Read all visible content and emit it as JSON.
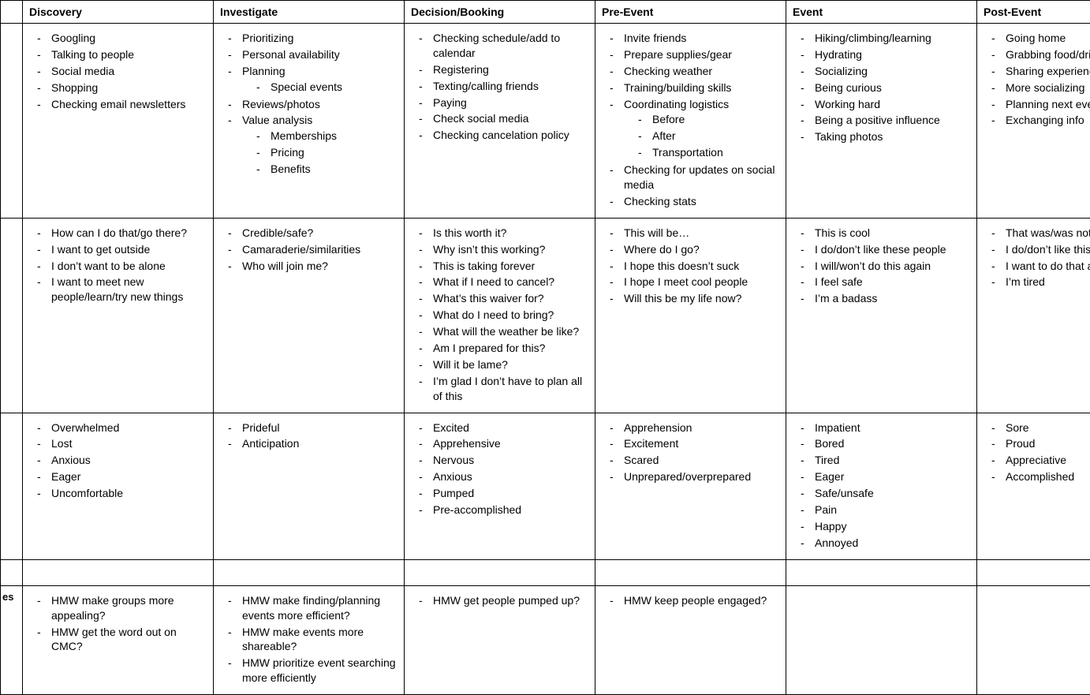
{
  "type": "table",
  "colors": {
    "border": "#000000",
    "background": "#ffffff",
    "text": "#000000"
  },
  "typography": {
    "font_family": "Arial",
    "base_fontsize_pt": 11,
    "header_weight": "bold"
  },
  "columns": [
    "Discovery",
    "Investigate",
    "Decision/Booking",
    "Pre-Event",
    "Event",
    "Post-Event"
  ],
  "row_labels": [
    "",
    "",
    "",
    "",
    "es"
  ],
  "rows": [
    {
      "cells": [
        {
          "items": [
            {
              "t": "Googling"
            },
            {
              "t": "Talking to people"
            },
            {
              "t": "Social media"
            },
            {
              "t": "Shopping"
            },
            {
              "t": "Checking email newsletters"
            }
          ]
        },
        {
          "items": [
            {
              "t": "Prioritizing"
            },
            {
              "t": "Personal availability"
            },
            {
              "t": "Planning",
              "children": [
                {
                  "t": "Special events"
                }
              ]
            },
            {
              "t": "Reviews/photos"
            },
            {
              "t": "Value analysis",
              "children": [
                {
                  "t": "Memberships"
                },
                {
                  "t": "Pricing"
                },
                {
                  "t": "Benefits"
                }
              ]
            }
          ]
        },
        {
          "items": [
            {
              "t": "Checking schedule/add to calendar"
            },
            {
              "t": "Registering"
            },
            {
              "t": "Texting/calling friends"
            },
            {
              "t": "Paying"
            },
            {
              "t": "Check social media"
            },
            {
              "t": "Checking cancelation policy"
            }
          ]
        },
        {
          "items": [
            {
              "t": "Invite friends"
            },
            {
              "t": "Prepare supplies/gear"
            },
            {
              "t": "Checking weather"
            },
            {
              "t": "Training/building skills"
            },
            {
              "t": "Coordinating logistics",
              "children": [
                {
                  "t": "Before"
                },
                {
                  "t": "After"
                },
                {
                  "t": "Transportation"
                }
              ]
            },
            {
              "t": "Checking for updates on social media"
            },
            {
              "t": "Checking stats"
            }
          ]
        },
        {
          "items": [
            {
              "t": "Hiking/climbing/learning"
            },
            {
              "t": "Hydrating"
            },
            {
              "t": "Socializing"
            },
            {
              "t": "Being curious"
            },
            {
              "t": "Working hard"
            },
            {
              "t": "Being a positive influence"
            },
            {
              "t": "Taking photos"
            }
          ]
        },
        {
          "items": [
            {
              "t": "Going home"
            },
            {
              "t": "Grabbing food/drinks"
            },
            {
              "t": "Sharing experience"
            },
            {
              "t": "More socializing"
            },
            {
              "t": "Planning next event"
            },
            {
              "t": "Exchanging info"
            }
          ]
        }
      ]
    },
    {
      "cells": [
        {
          "items": [
            {
              "t": "How can I do that/go there?"
            },
            {
              "t": "I want to get outside"
            },
            {
              "t": "I don’t want to be alone"
            },
            {
              "t": "I want to meet new people/learn/try new things"
            }
          ]
        },
        {
          "items": [
            {
              "t": "Credible/safe?"
            },
            {
              "t": "Camaraderie/similarities"
            },
            {
              "t": "Who will join me?"
            }
          ]
        },
        {
          "items": [
            {
              "t": "Is this worth it?"
            },
            {
              "t": "Why isn’t this working?"
            },
            {
              "t": "This is taking forever"
            },
            {
              "t": "What if I need to cancel?"
            },
            {
              "t": "What’s this waiver for?"
            },
            {
              "t": "What do I need to bring?"
            },
            {
              "t": "What will the weather be like?"
            },
            {
              "t": "Am I prepared for this?"
            },
            {
              "t": "Will it be lame?"
            },
            {
              "t": "I’m glad I don’t have to plan all of this"
            }
          ]
        },
        {
          "items": [
            {
              "t": "This will be…"
            },
            {
              "t": "Where do I go?"
            },
            {
              "t": "I hope this doesn’t suck"
            },
            {
              "t": "I hope I meet cool people"
            },
            {
              "t": "Will this be my life now?"
            }
          ]
        },
        {
          "items": [
            {
              "t": "This is cool"
            },
            {
              "t": "I do/don’t like these people"
            },
            {
              "t": "I will/won’t do this again"
            },
            {
              "t": "I feel safe"
            },
            {
              "t": "I’m a badass"
            }
          ]
        },
        {
          "items": [
            {
              "t": "That was/was not fun"
            },
            {
              "t": "I do/don’t like this"
            },
            {
              "t": "I want to do that again"
            },
            {
              "t": "I’m tired"
            }
          ]
        }
      ]
    },
    {
      "cells": [
        {
          "items": [
            {
              "t": "Overwhelmed"
            },
            {
              "t": "Lost"
            },
            {
              "t": "Anxious"
            },
            {
              "t": "Eager"
            },
            {
              "t": "Uncomfortable"
            }
          ]
        },
        {
          "items": [
            {
              "t": "Prideful"
            },
            {
              "t": "Anticipation"
            }
          ]
        },
        {
          "items": [
            {
              "t": "Excited"
            },
            {
              "t": "Apprehensive"
            },
            {
              "t": "Nervous"
            },
            {
              "t": "Anxious"
            },
            {
              "t": "Pumped"
            },
            {
              "t": "Pre-accomplished"
            }
          ]
        },
        {
          "items": [
            {
              "t": "Apprehension"
            },
            {
              "t": "Excitement"
            },
            {
              "t": "Scared"
            },
            {
              "t": "Unprepared/overprepared"
            }
          ]
        },
        {
          "items": [
            {
              "t": "Impatient"
            },
            {
              "t": "Bored"
            },
            {
              "t": "Tired"
            },
            {
              "t": "Eager"
            },
            {
              "t": "Safe/unsafe"
            },
            {
              "t": "Pain"
            },
            {
              "t": "Happy"
            },
            {
              "t": "Annoyed"
            }
          ]
        },
        {
          "items": [
            {
              "t": "Sore"
            },
            {
              "t": "Proud"
            },
            {
              "t": "Appreciative"
            },
            {
              "t": "Accomplished"
            }
          ]
        }
      ]
    },
    {
      "cells": [
        {
          "items": []
        },
        {
          "items": []
        },
        {
          "items": []
        },
        {
          "items": []
        },
        {
          "items": []
        },
        {
          "items": []
        }
      ]
    },
    {
      "cells": [
        {
          "items": [
            {
              "t": "HMW make groups more appealing?"
            },
            {
              "t": "HMW get the word out on CMC?"
            }
          ]
        },
        {
          "items": [
            {
              "t": "HMW make finding/planning events more efficient?"
            },
            {
              "t": "HMW make events more shareable?"
            },
            {
              "t": "HMW prioritize event searching more efficiently"
            }
          ]
        },
        {
          "items": [
            {
              "t": "HMW get people pumped up?"
            }
          ]
        },
        {
          "items": [
            {
              "t": "HMW keep people engaged?"
            }
          ]
        },
        {
          "items": []
        },
        {
          "items": []
        }
      ]
    }
  ]
}
